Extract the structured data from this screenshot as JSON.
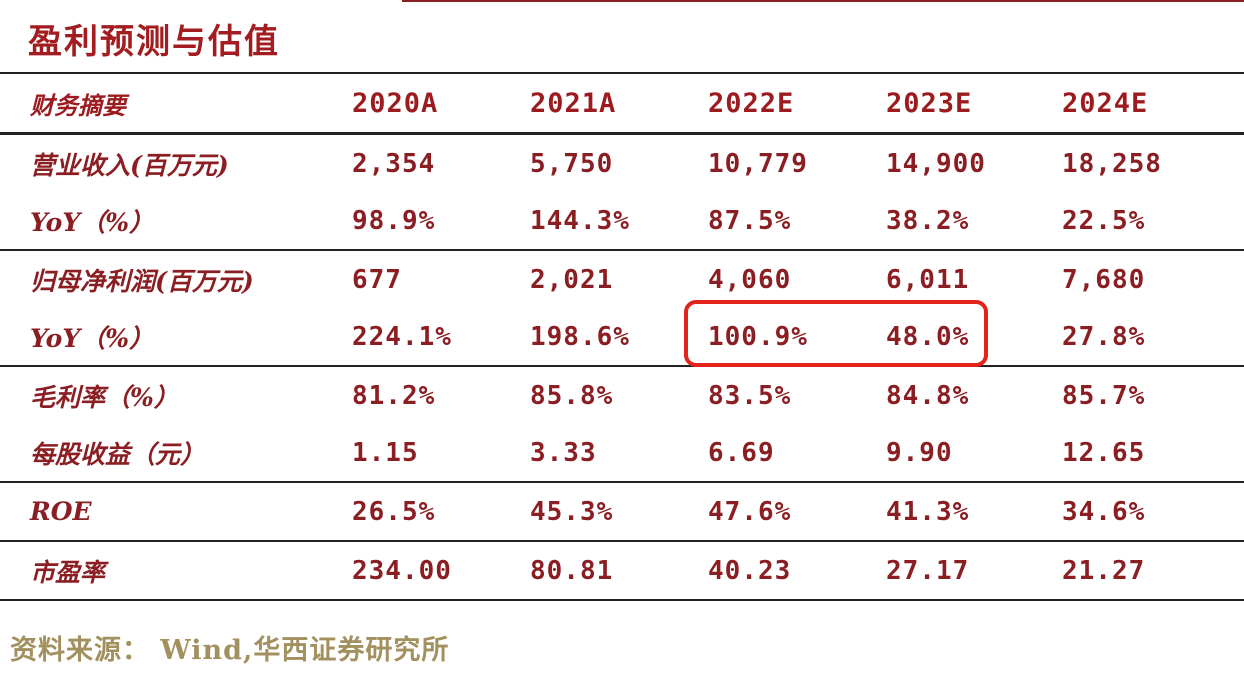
{
  "page": {
    "title": "盈利预测与估值",
    "source": "资料来源： Wind,华西证券研究所"
  },
  "colors": {
    "title_red": "#a31d20",
    "table_text": "#8b1e22",
    "rule": "#222222",
    "highlight": "#e2241b",
    "source_tan": "#a3905f"
  },
  "table": {
    "headers": [
      "财务摘要",
      "2020A",
      "2021A",
      "2022E",
      "2023E",
      "2024E"
    ],
    "rows": [
      {
        "label": "营业收入(百万元)",
        "values": [
          "2,354",
          "5,750",
          "10,779",
          "14,900",
          "18,258"
        ]
      },
      {
        "label": "YoY（%）",
        "values": [
          "98.9%",
          "144.3%",
          "87.5%",
          "38.2%",
          "22.5%"
        ]
      },
      {
        "label": "归母净利润(百万元)",
        "values": [
          "677",
          "2,021",
          "4,060",
          "6,011",
          "7,680"
        ]
      },
      {
        "label": "YoY（%）",
        "values": [
          "224.1%",
          "198.6%",
          "100.9%",
          "48.0%",
          "27.8%"
        ]
      },
      {
        "label": "毛利率（%）",
        "values": [
          "81.2%",
          "85.8%",
          "83.5%",
          "84.8%",
          "85.7%"
        ]
      },
      {
        "label": "每股收益（元）",
        "values": [
          "1.15",
          "3.33",
          "6.69",
          "9.90",
          "12.65"
        ]
      },
      {
        "label": "ROE",
        "values": [
          "26.5%",
          "45.3%",
          "47.6%",
          "41.3%",
          "34.6%"
        ]
      },
      {
        "label": "市盈率",
        "values": [
          "234.00",
          "80.81",
          "40.23",
          "27.17",
          "21.27"
        ]
      }
    ],
    "highlight_note": "red box around 2022E and 2023E YoY of net profit: 100.9% and 48.0%"
  }
}
